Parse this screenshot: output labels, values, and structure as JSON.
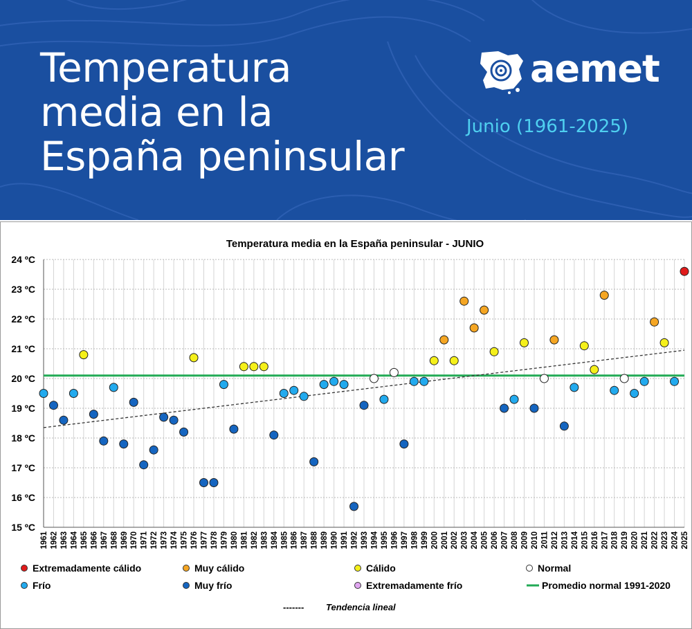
{
  "header": {
    "title_lines": [
      "Temperatura",
      "media en la",
      "España peninsular"
    ],
    "subtitle": "Junio (1961-2025)",
    "logo_text": "aemet",
    "logo_icon": "aemet-map-logo-icon"
  },
  "colors": {
    "header_bg": "#1a4fa0",
    "subtitle": "#4fd0f0",
    "Extremadamente cálido": "#e01b1b",
    "Muy cálido": "#f5a623",
    "Cálido": "#f5f01a",
    "Normal": "#ffffff",
    "Frío": "#22aaee",
    "Muy frío": "#1565c0",
    "Extremadamente frío": "#e0a6f0",
    "Promedio": "#22aa55",
    "trend": "#333333"
  },
  "chart_data": {
    "type": "scatter",
    "title": "Temperatura media en la España peninsular - JUNIO",
    "y_unit": "ºC",
    "ylim": [
      15,
      24
    ],
    "yticks": [
      15,
      16,
      17,
      18,
      19,
      20,
      21,
      22,
      23,
      24
    ],
    "x": [
      1961,
      1962,
      1963,
      1964,
      1965,
      1966,
      1967,
      1968,
      1969,
      1970,
      1971,
      1972,
      1973,
      1974,
      1975,
      1976,
      1977,
      1978,
      1979,
      1980,
      1981,
      1982,
      1983,
      1984,
      1985,
      1986,
      1987,
      1988,
      1989,
      1990,
      1991,
      1992,
      1993,
      1994,
      1995,
      1996,
      1997,
      1998,
      1999,
      2000,
      2001,
      2002,
      2003,
      2004,
      2005,
      2006,
      2007,
      2008,
      2009,
      2010,
      2011,
      2012,
      2013,
      2014,
      2015,
      2016,
      2017,
      2018,
      2019,
      2020,
      2021,
      2022,
      2023,
      2024,
      2025
    ],
    "values": [
      19.5,
      19.1,
      18.6,
      19.5,
      20.8,
      18.8,
      17.9,
      19.7,
      17.8,
      19.2,
      17.1,
      17.6,
      18.7,
      18.6,
      18.2,
      20.7,
      16.5,
      16.5,
      19.8,
      18.3,
      20.4,
      20.4,
      20.4,
      18.1,
      19.5,
      19.6,
      19.4,
      17.2,
      19.8,
      19.9,
      19.8,
      15.7,
      19.1,
      20.0,
      19.3,
      20.2,
      17.8,
      19.9,
      19.9,
      20.6,
      21.3,
      20.6,
      22.6,
      21.7,
      22.3,
      20.9,
      19.0,
      19.3,
      21.2,
      19.0,
      20.0,
      21.3,
      18.4,
      19.7,
      21.1,
      20.3,
      22.8,
      19.6,
      20.0,
      19.5,
      19.9,
      21.9,
      21.2,
      19.9,
      23.6
    ],
    "categories": [
      "Frío",
      "Muy frío",
      "Muy frío",
      "Frío",
      "Cálido",
      "Muy frío",
      "Muy frío",
      "Frío",
      "Muy frío",
      "Muy frío",
      "Muy frío",
      "Muy frío",
      "Muy frío",
      "Muy frío",
      "Muy frío",
      "Cálido",
      "Muy frío",
      "Muy frío",
      "Frío",
      "Muy frío",
      "Cálido",
      "Cálido",
      "Cálido",
      "Muy frío",
      "Frío",
      "Frío",
      "Frío",
      "Muy frío",
      "Frío",
      "Frío",
      "Frío",
      "Muy frío",
      "Muy frío",
      "Normal",
      "Frío",
      "Normal",
      "Muy frío",
      "Frío",
      "Frío",
      "Cálido",
      "Muy cálido",
      "Cálido",
      "Muy cálido",
      "Muy cálido",
      "Muy cálido",
      "Cálido",
      "Muy frío",
      "Frío",
      "Cálido",
      "Muy frío",
      "Normal",
      "Muy cálido",
      "Muy frío",
      "Frío",
      "Cálido",
      "Cálido",
      "Muy cálido",
      "Frío",
      "Normal",
      "Frío",
      "Frío",
      "Muy cálido",
      "Cálido",
      "Frío",
      "Extremadamente cálido"
    ],
    "normal_average": 20.1,
    "normal_average_label": "Promedio normal 1991-2020",
    "trend": {
      "label": "Tendencia lineal",
      "dash_label": "-------",
      "start_value": 18.35,
      "end_value": 20.95
    },
    "legend": [
      {
        "label": "Extremadamente cálido",
        "type": "dot"
      },
      {
        "label": "Muy cálido",
        "type": "dot"
      },
      {
        "label": "Cálido",
        "type": "dot"
      },
      {
        "label": "Normal",
        "type": "dot"
      },
      {
        "label": "Frío",
        "type": "dot"
      },
      {
        "label": "Muy frío",
        "type": "dot"
      },
      {
        "label": "Extremadamente frío",
        "type": "dot"
      },
      {
        "label": "Promedio normal 1991-2020",
        "type": "line"
      }
    ]
  }
}
